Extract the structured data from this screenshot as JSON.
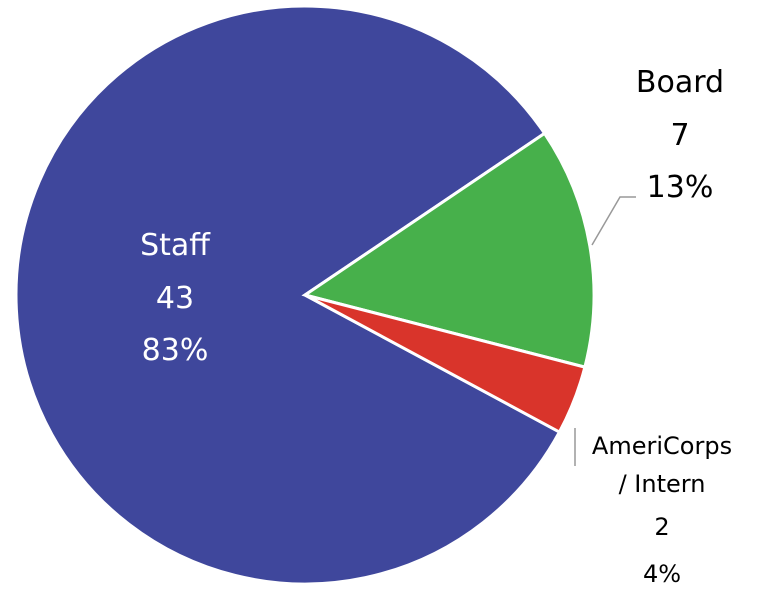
{
  "chart_data": {
    "type": "pie",
    "categories": [
      "Staff",
      "Board",
      "AmeriCorps / Intern"
    ],
    "values": [
      43,
      7,
      2
    ],
    "percent_labels": [
      "83%",
      "13%",
      "4%"
    ],
    "colors": [
      "#3f479c",
      "#47b04b",
      "#d9342b"
    ]
  }
}
